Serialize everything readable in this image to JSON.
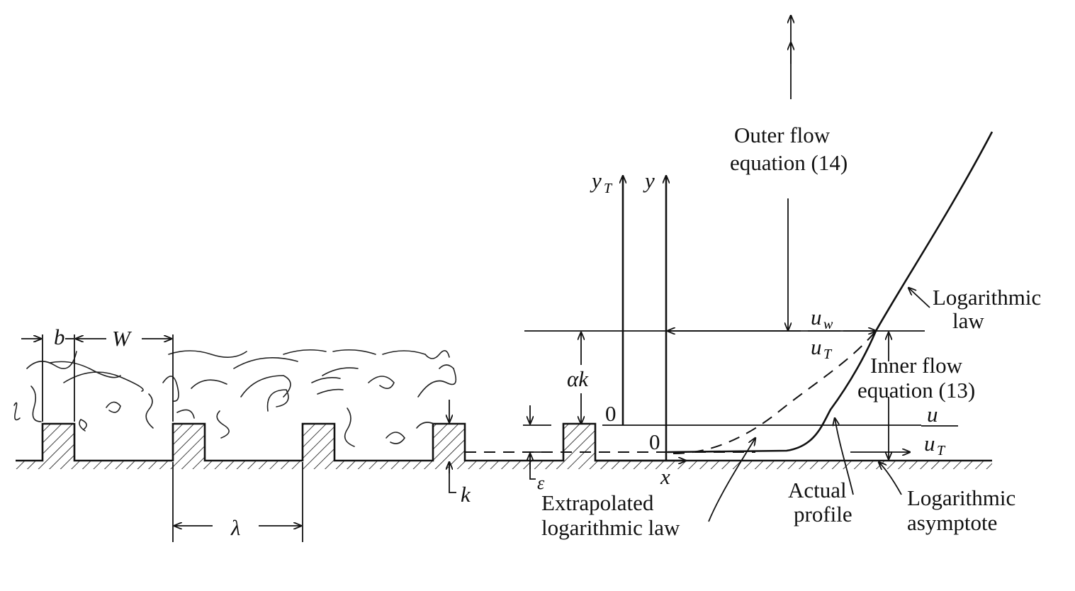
{
  "labels": {
    "b": "b",
    "W": "W",
    "lambda": "λ",
    "k": "k",
    "epsilon": "ε",
    "alpha_k": "αk",
    "y_T_main": "y",
    "y_T_sub": "T",
    "y": "y",
    "x": "x",
    "zero_left": "0",
    "zero_right": "0",
    "outer_flow_line1": "Outer flow",
    "outer_flow_line2": "equation (14)",
    "inner_flow_line1": "Inner flow",
    "inner_flow_line2": "equation (13)",
    "u_w_main": "u",
    "u_w_sub": "w",
    "u_tau_main_top": "u",
    "u_tau_sub_top": "T",
    "u_main": "u",
    "u_tau_main_bottom": "u",
    "u_tau_sub_bottom": "T",
    "log_law_line1": "Logarithmic",
    "log_law_line2": "law",
    "extrap_line1": "Extrapolated",
    "extrap_line2": "logarithmic law",
    "actual_line1": "Actual",
    "actual_line2": "profile",
    "asymptote_line1": "Logarithmic",
    "asymptote_line2": "asymptote"
  },
  "colors": {
    "ink": "#111111",
    "background": "#ffffff"
  }
}
